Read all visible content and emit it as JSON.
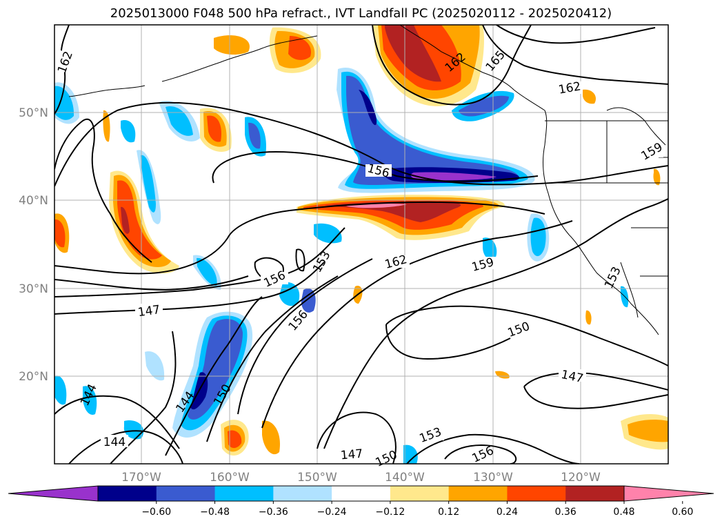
{
  "title": "2025013000 F048 500 hPa refract., IVT Landfall PC (2025020112 - 2025020412)",
  "lat_labels": [
    "50°N",
    "40°N",
    "30°N",
    "20°N"
  ],
  "lon_labels": [
    "170°W",
    "160°W",
    "150°W",
    "140°W",
    "130°W",
    "120°W"
  ],
  "colorbar": {
    "colors": [
      "#9932cc",
      "#00008b",
      "#3a5bd0",
      "#00bfff",
      "#b0e2ff",
      "#ffffff",
      "#ffe88c",
      "#ffa500",
      "#ff4500",
      "#b22222",
      "#ff82ab"
    ],
    "tick_labels": [
      "−0.60",
      "−0.48",
      "−0.36",
      "−0.24",
      "−0.12",
      "0.12",
      "0.24",
      "0.36",
      "0.48",
      "0.60"
    ]
  },
  "contour_labels": [
    "162",
    "162",
    "162",
    "165",
    "159",
    "156",
    "156",
    "153",
    "153",
    "156",
    "162",
    "159",
    "153",
    "147",
    "150",
    "147",
    "144",
    "144",
    "150",
    "144",
    "147",
    "150",
    "153",
    "156"
  ]
}
